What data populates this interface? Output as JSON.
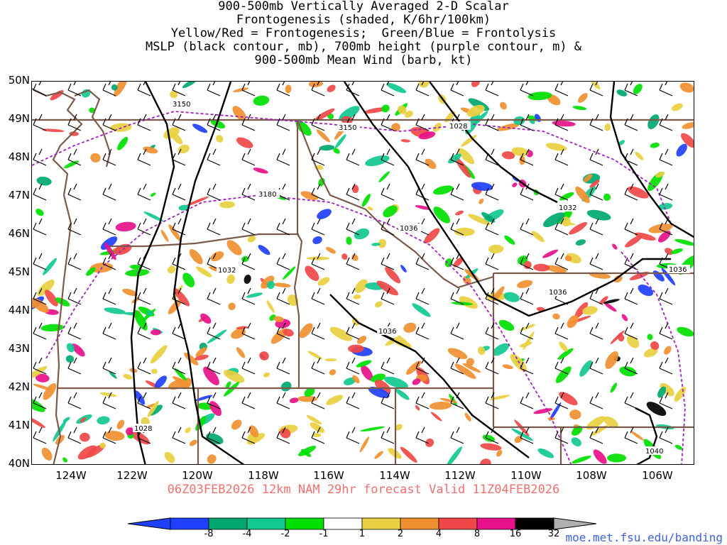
{
  "title": {
    "lines": [
      "900-500mb Vertically Averaged 2-D Scalar",
      "Frontogenesis (shaded, K/6hr/100km)",
      "Yellow/Red = Frontogenesis;  Green/Blue = Frontolysis",
      "MSLP (black contour, mb), 700mb height (purple contour, m) &",
      "900-500mb Mean Wind (barb, kt)"
    ]
  },
  "axes": {
    "lat_labels": [
      "50N",
      "49N",
      "48N",
      "47N",
      "46N",
      "45N",
      "44N",
      "43N",
      "42N",
      "41N",
      "40N"
    ],
    "lon_labels": [
      "124W",
      "122W",
      "120W",
      "118W",
      "116W",
      "114W",
      "112W",
      "110W",
      "108W",
      "106W"
    ]
  },
  "contours": {
    "mslp_labels": [
      "1028",
      "1032",
      "1036",
      "1036",
      "1036",
      "1036",
      "1032",
      "1028",
      "1040",
      "1036"
    ],
    "height_labels": [
      "3150",
      "3150",
      "3180"
    ]
  },
  "valid_line": "06Z03FEB2026 12km NAM 29hr forecast Valid 11Z04FEB2026",
  "colorbar": {
    "labels": [
      "-8",
      "-4",
      "-2",
      "-1",
      "1",
      "2",
      "4",
      "8",
      "16",
      "32"
    ],
    "colors": [
      "#2040ff",
      "#00a870",
      "#10c890",
      "#00e000",
      "#ffffff",
      "#e8d040",
      "#f09030",
      "#f04848",
      "#e8108a",
      "#000000"
    ],
    "left_tip_color": "#2040ff",
    "right_tip_color": "#b0b0b0"
  },
  "credit": "moe.met.fsu.edu/banding",
  "colors": {
    "mslp_contour": "#000000",
    "height_contour": "#a020c0",
    "border": "#7a5a4a",
    "valid_text": "#f07070",
    "credit_text": "#4060e0"
  }
}
